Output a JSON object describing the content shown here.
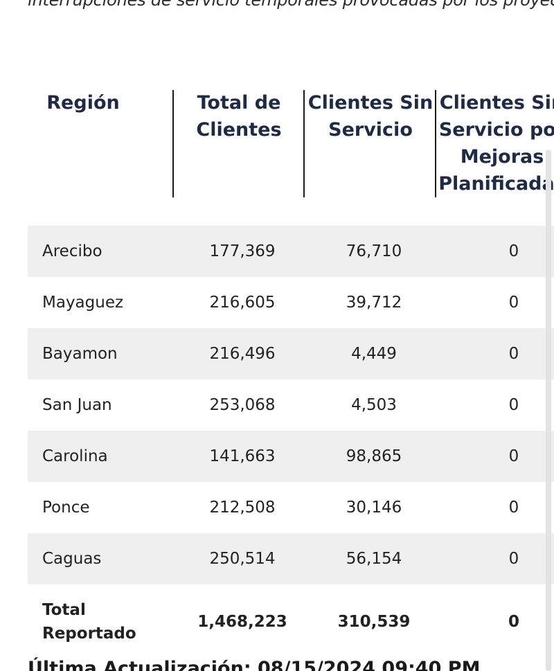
{
  "intro_text": "interrupciones de servicio temporales provocadas por los proyectos",
  "table": {
    "headers": {
      "region": "Región",
      "total_clients": "Total de Clientes",
      "clients_without_service": "Clientes Sin Servicio",
      "clients_without_service_planned": "Clientes Sin Servicio por Mejoras Planificadas"
    },
    "rows": [
      {
        "region": "Arecibo",
        "total_clients": "177,369",
        "clients_without_service": "76,710",
        "planned": "0"
      },
      {
        "region": "Mayaguez",
        "total_clients": "216,605",
        "clients_without_service": "39,712",
        "planned": "0"
      },
      {
        "region": "Bayamon",
        "total_clients": "216,496",
        "clients_without_service": "4,449",
        "planned": "0"
      },
      {
        "region": "San Juan",
        "total_clients": "253,068",
        "clients_without_service": "4,503",
        "planned": "0"
      },
      {
        "region": "Carolina",
        "total_clients": "141,663",
        "clients_without_service": "98,865",
        "planned": "0"
      },
      {
        "region": "Ponce",
        "total_clients": "212,508",
        "clients_without_service": "30,146",
        "planned": "0"
      },
      {
        "region": "Caguas",
        "total_clients": "250,514",
        "clients_without_service": "56,154",
        "planned": "0"
      }
    ],
    "total": {
      "label": "Total Reportado",
      "total_clients": "1,468,223",
      "clients_without_service": "310,539",
      "planned": "0"
    }
  },
  "footer": {
    "last_update": "Última Actualización: 08/15/2024 09:40 PM"
  },
  "colors": {
    "header_text": "#1f2a44",
    "row_shade": "#efefef",
    "body_text": "#222222"
  }
}
